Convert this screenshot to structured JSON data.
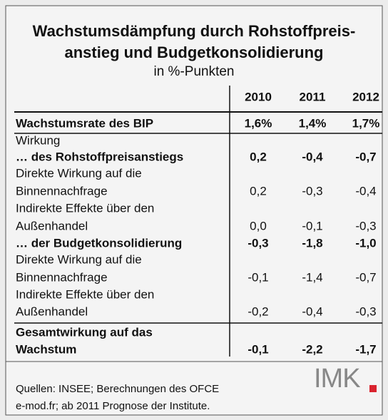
{
  "header": {
    "title_lines": [
      "Wachstumsdämpfung durch Rohstoffpreis-",
      "anstieg und Budgetkonsolidierung"
    ],
    "subtitle": "in %-Punkten"
  },
  "table": {
    "columns": [
      "2010",
      "2011",
      "2012"
    ],
    "rows": [
      {
        "label": "Wachstumsrate des BIP",
        "values": [
          "1,6%",
          "1,4%",
          "1,7%"
        ],
        "bold": true
      },
      {
        "label": "Wirkung"
      },
      {
        "label": "… des Rohstoffpreisanstiegs",
        "values": [
          "0,2",
          "-0,4",
          "-0,7"
        ],
        "bold": true
      },
      {
        "label": "Direkte Wirkung auf die"
      },
      {
        "label": "Binnennachfrage",
        "values": [
          "0,2",
          "-0,3",
          "-0,4"
        ]
      },
      {
        "label": "Indirekte Effekte über den"
      },
      {
        "label": "Außenhandel",
        "values": [
          "0,0",
          "-0,1",
          "-0,3"
        ]
      },
      {
        "label": "… der Budgetkonsolidierung",
        "values": [
          "-0,3",
          "-1,8",
          "-1,0"
        ],
        "bold": true
      },
      {
        "label": "Direkte Wirkung auf die"
      },
      {
        "label": "Binnennachfrage",
        "values": [
          "-0,1",
          "-1,4",
          "-0,7"
        ]
      },
      {
        "label": "Indirekte Effekte über den"
      },
      {
        "label": "Außenhandel",
        "values": [
          "-0,2",
          "-0,4",
          "-0,3"
        ]
      },
      {
        "label": "Gesamtwirkung auf das",
        "bold": true
      },
      {
        "label": "Wachstum",
        "values": [
          "-0,1",
          "-2,2",
          "-1,7"
        ],
        "bold": true
      }
    ]
  },
  "footer": {
    "source_lines": [
      "Quellen: INSEE; Berechnungen des OFCE",
      "e-mod.fr; ab 2011 Prognose der Institute."
    ],
    "logo": "IMK"
  }
}
